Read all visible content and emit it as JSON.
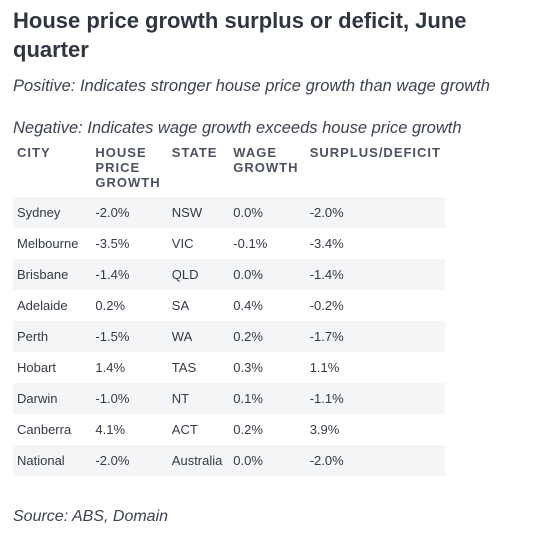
{
  "title": "House price growth surplus or deficit, June quarter",
  "subtitle_positive": "Positive: Indicates stronger house price growth than wage growth",
  "subtitle_negative": "Negative: Indicates wage growth exceeds house price growth",
  "columns": {
    "city": "CITY",
    "house_lines": [
      "HOUSE",
      "PRICE",
      "GROWTH"
    ],
    "state": "STATE",
    "wage_lines": [
      "WAGE",
      "GROWTH"
    ],
    "surplus": "SURPLUS/DEFICIT"
  },
  "rows": [
    {
      "city": "Sydney",
      "house": "-2.0%",
      "state": "NSW",
      "wage": "0.0%",
      "surplus": "-2.0%"
    },
    {
      "city": "Melbourne",
      "house": "-3.5%",
      "state": "VIC",
      "wage": "-0.1%",
      "surplus": "-3.4%"
    },
    {
      "city": "Brisbane",
      "house": "-1.4%",
      "state": "QLD",
      "wage": "0.0%",
      "surplus": "-1.4%"
    },
    {
      "city": "Adelaide",
      "house": "0.2%",
      "state": "SA",
      "wage": "0.4%",
      "surplus": "-0.2%"
    },
    {
      "city": "Perth",
      "house": "-1.5%",
      "state": "WA",
      "wage": "0.2%",
      "surplus": "-1.7%"
    },
    {
      "city": "Hobart",
      "house": "1.4%",
      "state": "TAS",
      "wage": "0.3%",
      "surplus": "1.1%"
    },
    {
      "city": "Darwin",
      "house": "-1.0%",
      "state": "NT",
      "wage": "0.1%",
      "surplus": "-1.1%"
    },
    {
      "city": "Canberra",
      "house": "4.1%",
      "state": "ACT",
      "wage": "0.2%",
      "surplus": "3.9%"
    },
    {
      "city": "National",
      "house": "-2.0%",
      "state": "Australia",
      "wage": "0.0%",
      "surplus": "-2.0%"
    }
  ],
  "source": "Source: ABS, Domain"
}
